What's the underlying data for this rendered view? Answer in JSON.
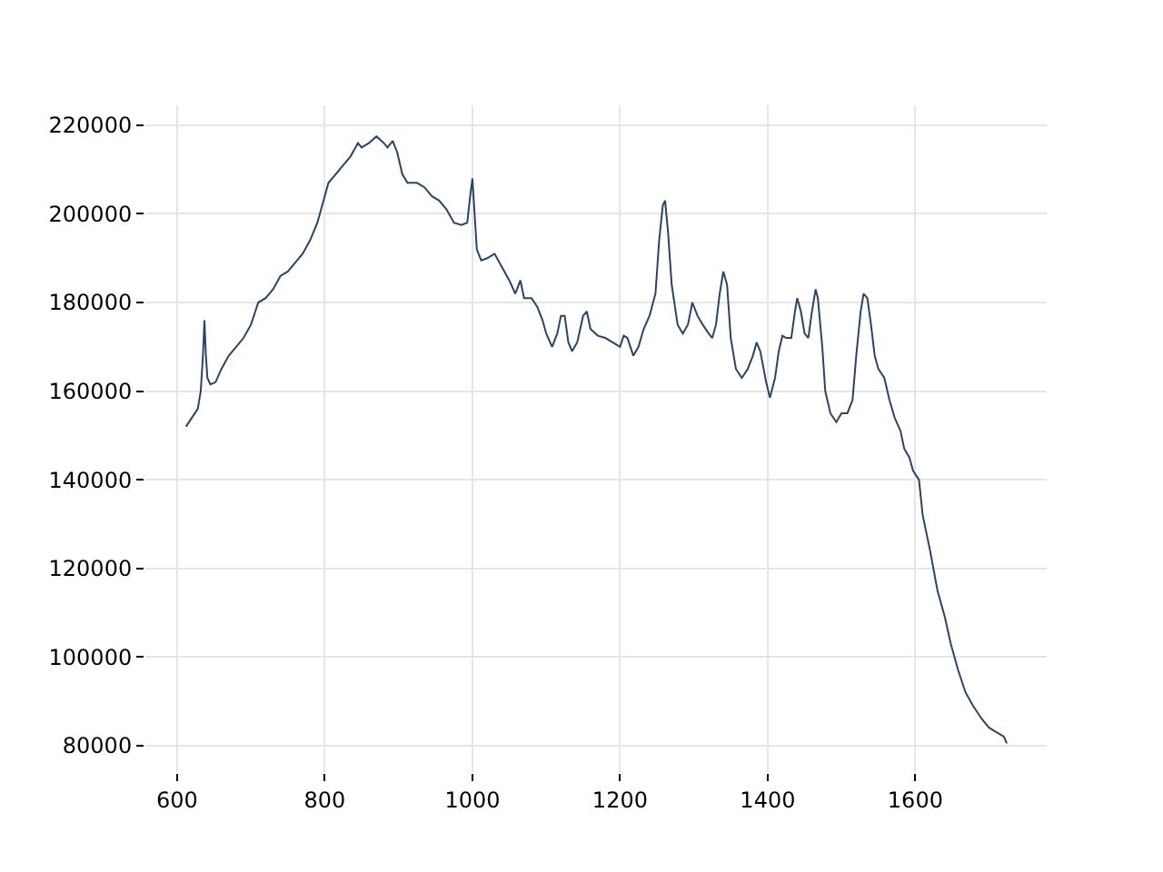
{
  "chart_data": {
    "type": "line",
    "x": [
      612,
      620,
      628,
      632,
      635,
      637,
      639,
      641,
      645,
      652,
      660,
      670,
      680,
      690,
      700,
      710,
      720,
      730,
      740,
      750,
      760,
      770,
      780,
      790,
      800,
      805,
      815,
      825,
      835,
      845,
      850,
      860,
      870,
      880,
      885,
      892,
      898,
      905,
      912,
      925,
      935,
      945,
      955,
      965,
      975,
      985,
      993,
      997,
      1000,
      1003,
      1006,
      1012,
      1020,
      1030,
      1040,
      1050,
      1058,
      1065,
      1070,
      1080,
      1088,
      1095,
      1100,
      1108,
      1115,
      1120,
      1125,
      1130,
      1135,
      1142,
      1150,
      1155,
      1160,
      1170,
      1180,
      1190,
      1200,
      1205,
      1210,
      1218,
      1225,
      1232,
      1240,
      1248,
      1253,
      1258,
      1261,
      1265,
      1270,
      1278,
      1285,
      1292,
      1298,
      1305,
      1312,
      1320,
      1325,
      1330,
      1335,
      1340,
      1345,
      1350,
      1357,
      1365,
      1373,
      1380,
      1385,
      1390,
      1398,
      1403,
      1410,
      1415,
      1420,
      1425,
      1432,
      1437,
      1440,
      1445,
      1450,
      1455,
      1460,
      1465,
      1468,
      1474,
      1478,
      1485,
      1493,
      1500,
      1508,
      1515,
      1520,
      1526,
      1530,
      1535,
      1540,
      1545,
      1550,
      1558,
      1565,
      1572,
      1580,
      1585,
      1592,
      1597,
      1605,
      1610,
      1620,
      1630,
      1640,
      1648,
      1658,
      1668,
      1678,
      1690,
      1700,
      1710,
      1720,
      1724
    ],
    "series": [
      {
        "color": "#2a4466",
        "values": [
          152000,
          154000,
          156000,
          160000,
          168000,
          176000,
          168000,
          163000,
          161500,
          162000,
          165000,
          168000,
          170000,
          172000,
          175000,
          180000,
          181000,
          183000,
          186000,
          187000,
          189000,
          191000,
          194000,
          198000,
          204000,
          207000,
          209000,
          211000,
          213000,
          216000,
          215000,
          216000,
          217500,
          216000,
          215000,
          216500,
          214000,
          209000,
          207000,
          207000,
          206000,
          204000,
          203000,
          201000,
          198000,
          197500,
          198000,
          204000,
          208000,
          200000,
          192000,
          189500,
          190000,
          191000,
          188000,
          185000,
          182000,
          185000,
          181000,
          181000,
          179000,
          176000,
          173000,
          170000,
          173000,
          177000,
          177000,
          171000,
          169000,
          171000,
          177000,
          178000,
          174000,
          172500,
          172000,
          171000,
          170000,
          172500,
          172000,
          168000,
          170000,
          174000,
          177000,
          182000,
          194000,
          202000,
          203000,
          196000,
          184000,
          175000,
          173000,
          175000,
          180000,
          177000,
          175000,
          173000,
          172000,
          175000,
          182000,
          187000,
          184000,
          172000,
          165000,
          163000,
          165000,
          168000,
          171000,
          169000,
          162000,
          158500,
          163000,
          169000,
          172500,
          172000,
          172000,
          178000,
          181000,
          178000,
          173000,
          172000,
          178000,
          183000,
          181000,
          170000,
          160000,
          155000,
          153000,
          155000,
          155000,
          158000,
          168000,
          178000,
          182000,
          181000,
          175000,
          168000,
          165000,
          163000,
          158000,
          154000,
          151000,
          147000,
          145000,
          142000,
          140000,
          132000,
          124000,
          115000,
          109000,
          103000,
          97000,
          92000,
          89000,
          86000,
          84000,
          83000,
          82000,
          80500
        ]
      }
    ],
    "xlim": [
      557,
      1778
    ],
    "ylim": [
      74000,
      224500
    ],
    "xticks": [
      600,
      800,
      1000,
      1200,
      1400,
      1600
    ],
    "yticks": [
      80000,
      100000,
      120000,
      140000,
      160000,
      180000,
      200000,
      220000
    ],
    "grid": true,
    "line_style": "solid"
  }
}
